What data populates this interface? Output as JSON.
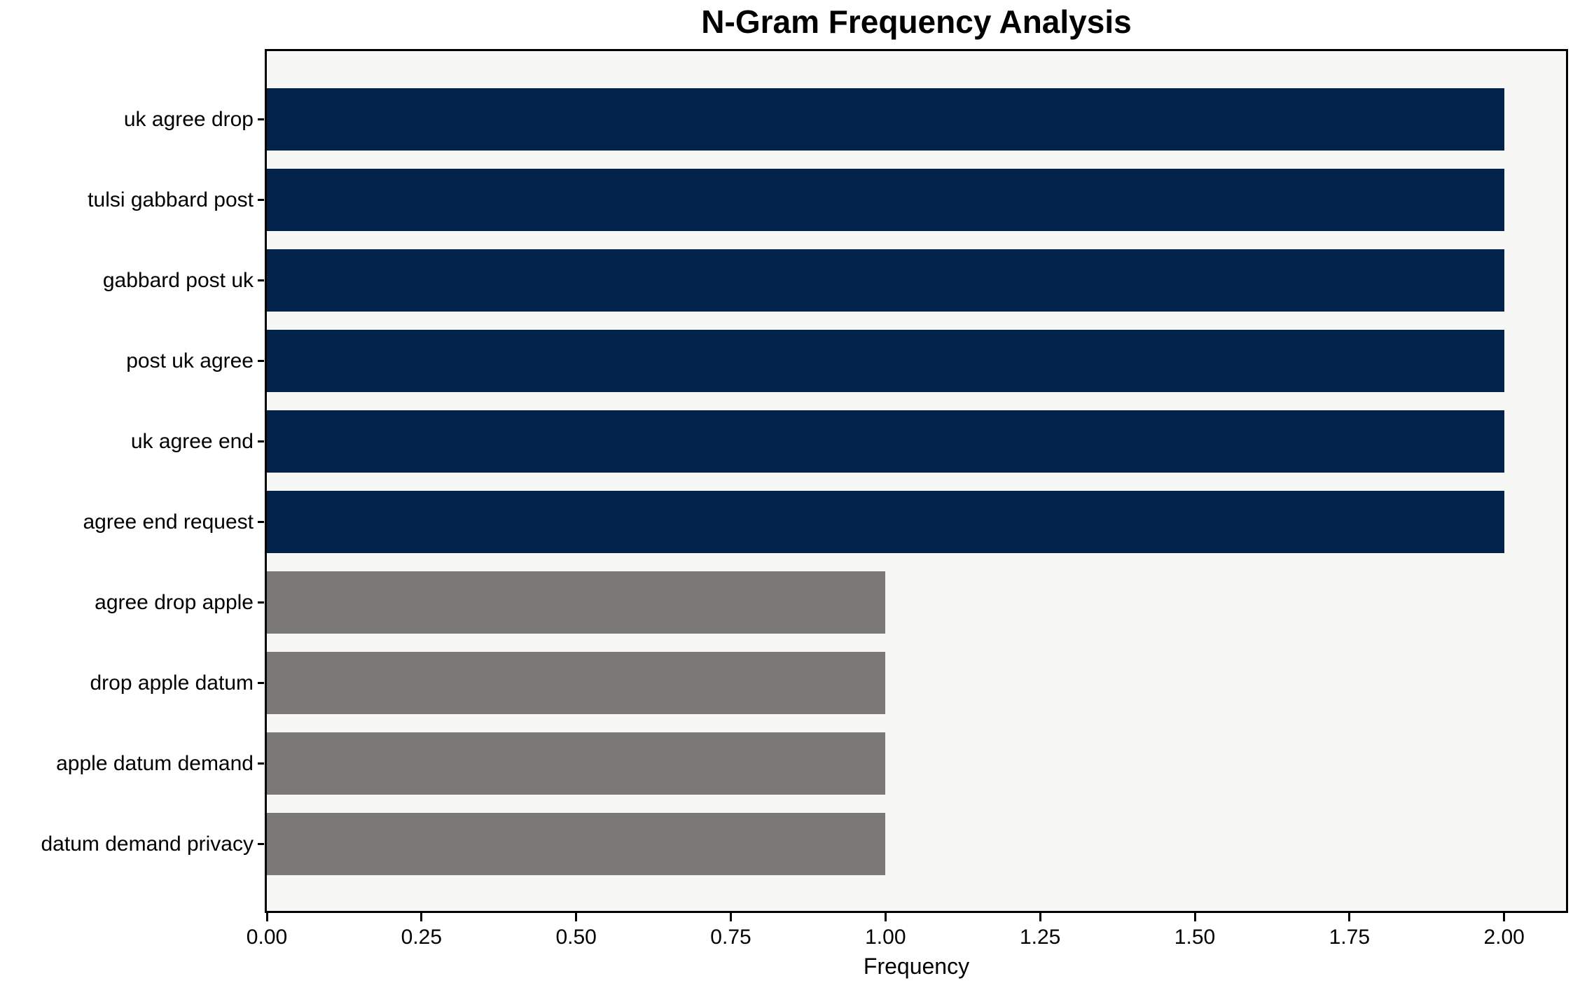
{
  "chart_data": {
    "type": "bar",
    "orientation": "horizontal",
    "title": "N-Gram Frequency Analysis",
    "xlabel": "Frequency",
    "ylabel": "",
    "categories": [
      "uk agree drop",
      "tulsi gabbard post",
      "gabbard post uk",
      "post uk agree",
      "uk agree end",
      "agree end request",
      "agree drop apple",
      "drop apple datum",
      "apple datum demand",
      "datum demand privacy"
    ],
    "values": [
      2,
      2,
      2,
      2,
      2,
      2,
      1,
      1,
      1,
      1
    ],
    "bar_colors": [
      "#02234c",
      "#02234c",
      "#02234c",
      "#02234c",
      "#02234c",
      "#02234c",
      "#7a7976",
      "#7a7976",
      "#7a7976",
      "#7a7976"
    ],
    "xlim": [
      0,
      2.1
    ],
    "xticks": [
      0,
      0.25,
      0.5,
      0.75,
      1.0,
      1.25,
      1.5,
      1.75,
      2.0
    ],
    "xtick_labels": [
      "0.00",
      "0.25",
      "0.50",
      "0.75",
      "1.00",
      "1.25",
      "1.50",
      "1.75",
      "2.00"
    ],
    "grid": false,
    "legend_position": "none",
    "colors": {
      "bar_high": "#02234c",
      "bar_low": "#7a7976",
      "plot_background": "#f7f7f6",
      "figure_background": "#ffffff",
      "spine": "#000000",
      "text": "#000000"
    }
  }
}
